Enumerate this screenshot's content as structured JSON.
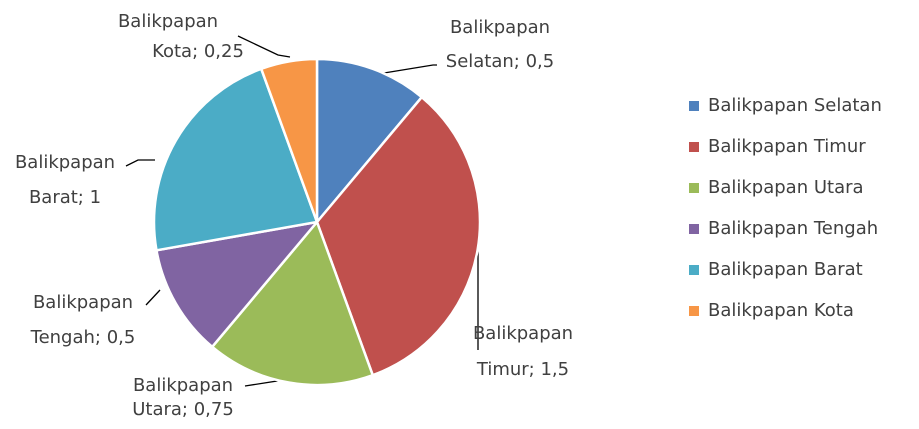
{
  "chart_data": {
    "type": "pie",
    "categories": [
      "Balikpapan Selatan",
      "Balikpapan Timur",
      "Balikpapan Utara",
      "Balikpapan Tengah",
      "Balikpapan Barat",
      "Balikpapan Kota"
    ],
    "values": [
      0.5,
      1.5,
      0.75,
      0.5,
      1,
      0.25
    ],
    "value_labels": [
      [
        "Balikpapan",
        "Selatan; 0,5"
      ],
      [
        "Balikpapan",
        "Timur; 1,5"
      ],
      [
        "Balikpapan",
        "Utara; 0,75"
      ],
      [
        "Balikpapan",
        "Tengah; 0,5"
      ],
      [
        "Balikpapan",
        "Barat; 1"
      ],
      [
        "Balikpapan",
        "Kota; 0,25"
      ]
    ],
    "colors": [
      "#4f81bd",
      "#c0504d",
      "#9bbb59",
      "#8064a2",
      "#4bacc6",
      "#f79646"
    ],
    "legend": "right"
  }
}
